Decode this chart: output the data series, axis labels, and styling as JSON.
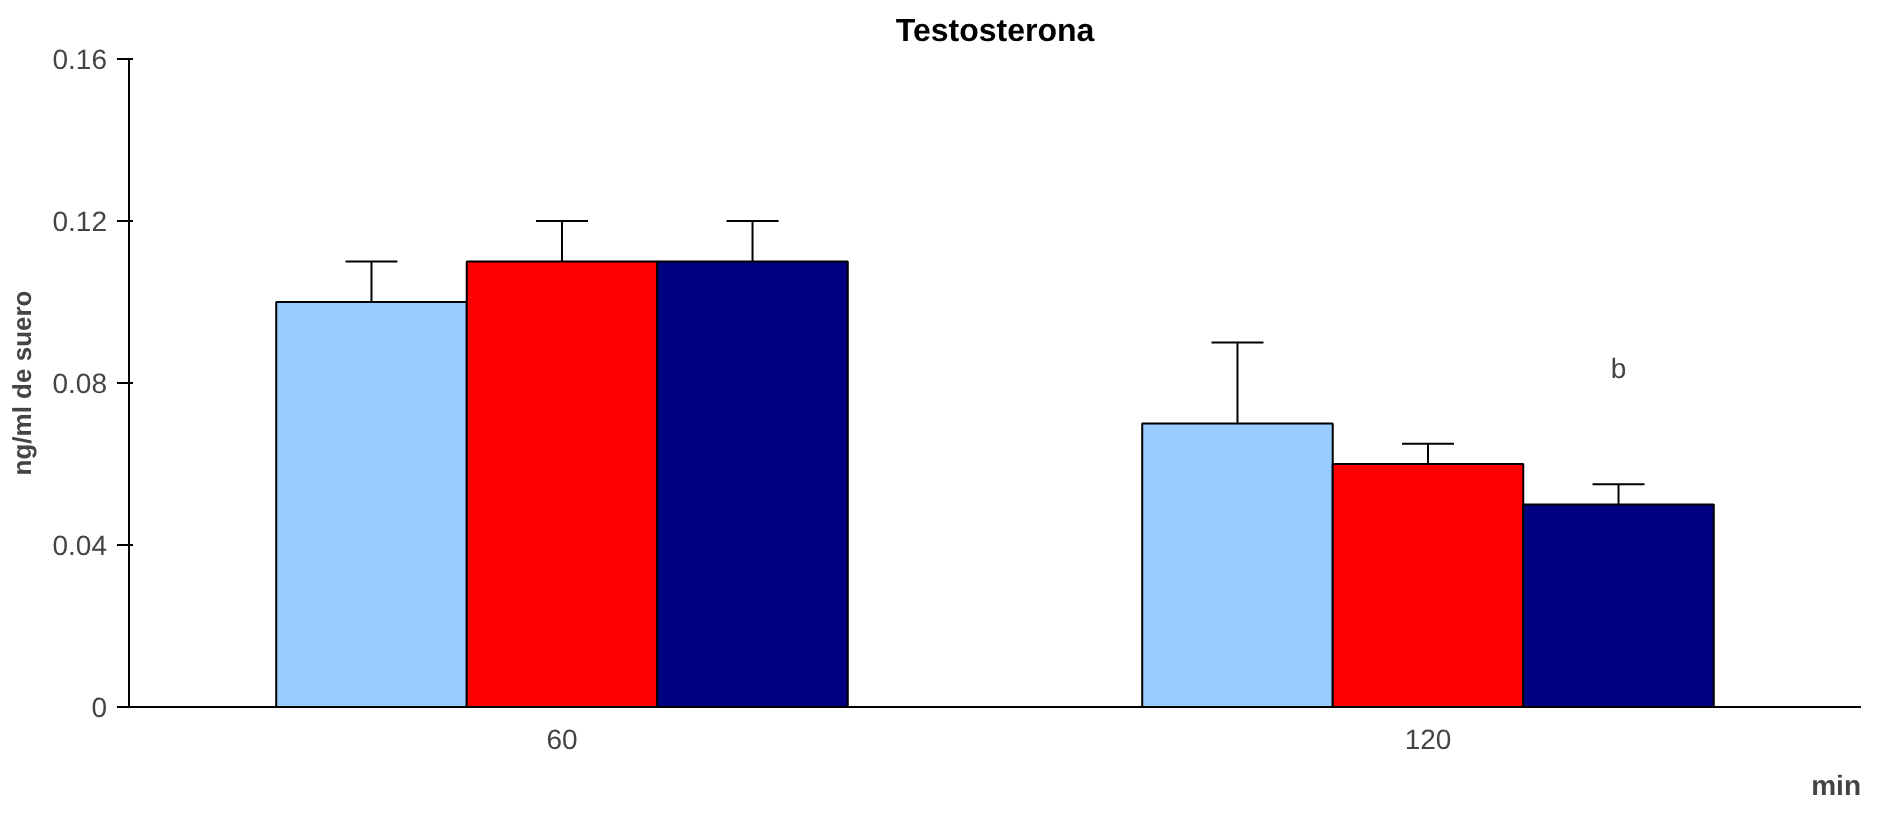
{
  "chart_data": {
    "type": "bar",
    "title": "Testosterona",
    "xlabel": "min",
    "ylabel": "ng/ml de suero",
    "categories": [
      "60",
      "120"
    ],
    "series": [
      {
        "color": "#99ccff",
        "values": [
          0.1,
          0.07
        ],
        "errors": [
          [
            0.1,
            0.11
          ],
          [
            0.07,
            0.09
          ]
        ]
      },
      {
        "color": "#ff0000",
        "values": [
          0.11,
          0.06
        ],
        "errors": [
          [
            0.11,
            0.12
          ],
          [
            0.06,
            0.065
          ]
        ]
      },
      {
        "color": "#000080",
        "values": [
          0.11,
          0.05
        ],
        "errors": [
          [
            0.11,
            0.12
          ],
          [
            0.05,
            0.055
          ]
        ]
      }
    ],
    "ylim": [
      0,
      0.16
    ],
    "yticks": [
      {
        "value": 0,
        "label": "0"
      },
      0.04,
      0.08,
      0.12,
      0.16
    ],
    "annotations": [
      "b"
    ],
    "grid": false
  }
}
